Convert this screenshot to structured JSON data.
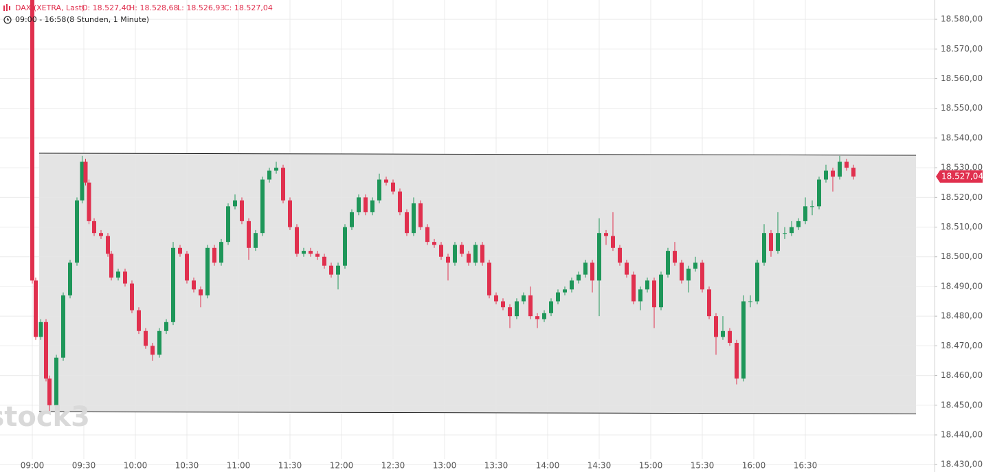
{
  "header": {
    "symbol": "DAX (XETRA, Last)",
    "open": "O: 18.527,40",
    "high": "H: 18.528,68",
    "low": "L: 18.526,93",
    "close": "C: 18.527,04",
    "range": "09:00 - 16:58",
    "period": "(8 Stunden, 1 Minute)"
  },
  "watermark": "stock3",
  "chart_data": {
    "type": "candlestick",
    "x": [
      0,
      2,
      5,
      8,
      10,
      14,
      18,
      22,
      26,
      29,
      31,
      33,
      36,
      40,
      44,
      46,
      50,
      54,
      58,
      62,
      66,
      70,
      74,
      78,
      82,
      86,
      90,
      94,
      98,
      102,
      106,
      110,
      114,
      118,
      122,
      126,
      130,
      134,
      138,
      142,
      146,
      150,
      154,
      158,
      162,
      166,
      170,
      174,
      178,
      182,
      186,
      190,
      194,
      198,
      202,
      206,
      210,
      214,
      218,
      222,
      226,
      230,
      234,
      238,
      242,
      246,
      250,
      254,
      258,
      262,
      266,
      270,
      274,
      278,
      282,
      286,
      290,
      294,
      298,
      302,
      306,
      310,
      314,
      318,
      322,
      326,
      330,
      334,
      338,
      342,
      346,
      350,
      354,
      358,
      362,
      366,
      370,
      374,
      378,
      382,
      386,
      390,
      394,
      398,
      402,
      406,
      410,
      414,
      418,
      422,
      426,
      430,
      434,
      438,
      442,
      446,
      450,
      454,
      458,
      462,
      466,
      470,
      474,
      478
    ],
    "open": [
      18587,
      18492,
      18473,
      18478,
      18459,
      18450,
      18466,
      18487,
      18498,
      18519,
      18532,
      18525,
      18512,
      18508,
      18507,
      18501,
      18493,
      18495,
      18491,
      18482,
      18475,
      18470,
      18467,
      18475,
      18478,
      18503,
      18501,
      18492,
      18489,
      18487,
      18503,
      18498,
      18505,
      18517,
      18519,
      18512,
      18503,
      18508,
      18526,
      18529,
      18530,
      18519,
      18510,
      18501,
      18502,
      18501,
      18500,
      18497,
      18494,
      18497,
      18510,
      18515,
      18520,
      18515,
      18519,
      18526,
      18525,
      18522,
      18515,
      18508,
      18518,
      18510,
      18505,
      18504,
      18500,
      18498,
      18504,
      18501,
      18498,
      18504,
      18498,
      18487,
      18485,
      18483,
      18480,
      18485,
      18487,
      18480,
      18479,
      18481,
      18485,
      18488,
      18489,
      18492,
      18494,
      18498,
      18492,
      18508,
      18507,
      18503,
      18498,
      18494,
      18485,
      18489,
      18492,
      18483,
      18494,
      18502,
      18498,
      18492,
      18496,
      18498,
      18489,
      18480,
      18473,
      18475,
      18471,
      18459,
      18485,
      18485,
      18498,
      18508,
      18502,
      18508,
      18508,
      18510,
      18512,
      18517,
      18517,
      18526,
      18529,
      18527,
      18532,
      18530
    ],
    "high": [
      18588,
      18493,
      18479,
      18479,
      18460,
      18467,
      18488,
      18499,
      18520,
      18534,
      18533,
      18526,
      18513,
      18509,
      18508,
      18502,
      18496,
      18496,
      18492,
      18483,
      18476,
      18471,
      18476,
      18479,
      18505,
      18504,
      18502,
      18493,
      18490,
      18504,
      18504,
      18506,
      18518,
      18521,
      18520,
      18513,
      18509,
      18527,
      18530,
      18532,
      18531,
      18520,
      18511,
      18503,
      18503,
      18502,
      18501,
      18498,
      18498,
      18511,
      18516,
      18521,
      18521,
      18520,
      18528,
      18527,
      18526,
      18523,
      18516,
      18520,
      18519,
      18511,
      18506,
      18505,
      18501,
      18505,
      18505,
      18502,
      18505,
      18505,
      18499,
      18488,
      18486,
      18484,
      18486,
      18488,
      18490,
      18481,
      18482,
      18486,
      18489,
      18490,
      18493,
      18495,
      18499,
      18499,
      18513,
      18509,
      18515,
      18504,
      18499,
      18495,
      18490,
      18493,
      18493,
      18495,
      18503,
      18505,
      18499,
      18497,
      18500,
      18499,
      18490,
      18481,
      18480,
      18476,
      18472,
      18487,
      18487,
      18499,
      18511,
      18509,
      18515,
      18510,
      18512,
      18513,
      18520,
      18519,
      18527,
      18531,
      18530,
      18534,
      18533,
      18531
    ],
    "low": [
      18491,
      18472,
      18472,
      18458,
      18448,
      18449,
      18465,
      18486,
      18497,
      18518,
      18524,
      18511,
      18507,
      18506,
      18500,
      18492,
      18492,
      18490,
      18481,
      18474,
      18469,
      18465,
      18466,
      18474,
      18477,
      18500,
      18491,
      18488,
      18483,
      18486,
      18497,
      18497,
      18504,
      18516,
      18511,
      18499,
      18502,
      18507,
      18525,
      18528,
      18518,
      18509,
      18500,
      18500,
      18500,
      18499,
      18496,
      18493,
      18489,
      18496,
      18509,
      18514,
      18514,
      18514,
      18518,
      18524,
      18521,
      18514,
      18507,
      18507,
      18509,
      18504,
      18503,
      18499,
      18492,
      18497,
      18500,
      18497,
      18497,
      18497,
      18486,
      18484,
      18482,
      18476,
      18479,
      18484,
      18479,
      18476,
      18478,
      18480,
      18484,
      18487,
      18488,
      18491,
      18493,
      18488,
      18480,
      18504,
      18502,
      18497,
      18493,
      18484,
      18482,
      18488,
      18476,
      18482,
      18493,
      18497,
      18491,
      18488,
      18495,
      18488,
      18479,
      18467,
      18472,
      18470,
      18457,
      18458,
      18483,
      18484,
      18497,
      18500,
      18501,
      18506,
      18507,
      18509,
      18511,
      18514,
      18516,
      18525,
      18522,
      18526,
      18529,
      18526
    ],
    "close": [
      18492,
      18473,
      18478,
      18459,
      18450,
      18466,
      18487,
      18498,
      18519,
      18532,
      18525,
      18512,
      18508,
      18507,
      18501,
      18493,
      18495,
      18491,
      18482,
      18475,
      18470,
      18467,
      18475,
      18478,
      18503,
      18501,
      18492,
      18489,
      18487,
      18503,
      18498,
      18505,
      18517,
      18519,
      18512,
      18503,
      18508,
      18526,
      18529,
      18530,
      18519,
      18510,
      18501,
      18502,
      18501,
      18500,
      18497,
      18494,
      18497,
      18510,
      18515,
      18520,
      18515,
      18519,
      18526,
      18525,
      18522,
      18515,
      18508,
      18518,
      18510,
      18505,
      18504,
      18500,
      18498,
      18504,
      18501,
      18498,
      18504,
      18498,
      18487,
      18485,
      18483,
      18480,
      18485,
      18487,
      18480,
      18479,
      18481,
      18485,
      18488,
      18489,
      18492,
      18494,
      18498,
      18492,
      18508,
      18507,
      18503,
      18498,
      18494,
      18485,
      18489,
      18492,
      18483,
      18494,
      18502,
      18498,
      18492,
      18496,
      18498,
      18489,
      18480,
      18473,
      18475,
      18471,
      18459,
      18485,
      18485,
      18498,
      18508,
      18502,
      18508,
      18508,
      18510,
      18512,
      18517,
      18517,
      18526,
      18529,
      18527,
      18532,
      18530,
      18527.04
    ],
    "up_color": "#1e9659",
    "down_color": "#e0304e",
    "xlim": [
      -18.8,
      525.2
    ],
    "xticks": [
      {
        "value": 0,
        "label": "09:00"
      },
      {
        "value": 30,
        "label": "09:30"
      },
      {
        "value": 60,
        "label": "10:00"
      },
      {
        "value": 90,
        "label": "10:30"
      },
      {
        "value": 120,
        "label": "11:00"
      },
      {
        "value": 150,
        "label": "11:30"
      },
      {
        "value": 180,
        "label": "12:00"
      },
      {
        "value": 210,
        "label": "12:30"
      },
      {
        "value": 240,
        "label": "13:00"
      },
      {
        "value": 270,
        "label": "13:30"
      },
      {
        "value": 300,
        "label": "14:00"
      },
      {
        "value": 330,
        "label": "14:30"
      },
      {
        "value": 360,
        "label": "15:00"
      },
      {
        "value": 390,
        "label": "15:30"
      },
      {
        "value": 420,
        "label": "16:00"
      },
      {
        "value": 450,
        "label": "16:30"
      }
    ],
    "ylim": [
      18427.5,
      18586.5
    ],
    "yticks": [
      {
        "value": 18430,
        "label": "18.430,00"
      },
      {
        "value": 18440,
        "label": "18.440,00"
      },
      {
        "value": 18450,
        "label": "18.450,00"
      },
      {
        "value": 18460,
        "label": "18.460,00"
      },
      {
        "value": 18470,
        "label": "18.470,00"
      },
      {
        "value": 18480,
        "label": "18.480,00"
      },
      {
        "value": 18490,
        "label": "18.490,00"
      },
      {
        "value": 18500,
        "label": "18.500,00"
      },
      {
        "value": 18510,
        "label": "18.510,00"
      },
      {
        "value": 18520,
        "label": "18.520,00"
      },
      {
        "value": 18530,
        "label": "18.530,00"
      },
      {
        "value": 18540,
        "label": "18.540,00"
      },
      {
        "value": 18550,
        "label": "18.550,00"
      },
      {
        "value": 18560,
        "label": "18.560,00"
      },
      {
        "value": 18570,
        "label": "18.570,00"
      },
      {
        "value": 18580,
        "label": "18.580,00"
      }
    ],
    "grid": true,
    "last_price": {
      "value": 18527.04,
      "label": "18.527,04"
    },
    "channel": {
      "x": [
        4,
        514.4
      ],
      "upper": [
        18534.9,
        18534.2
      ],
      "lower": [
        18447.8,
        18447.1
      ],
      "fill": "#e4e4e4",
      "color": "#222222"
    }
  }
}
